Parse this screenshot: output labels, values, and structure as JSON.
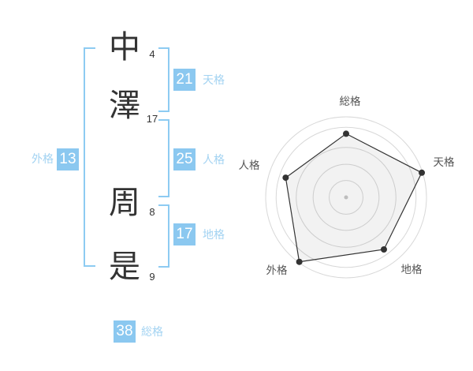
{
  "name_panel": {
    "characters": [
      {
        "char": "中",
        "strokes": "4"
      },
      {
        "char": "澤",
        "strokes": "17"
      },
      {
        "char": "周",
        "strokes": "8"
      },
      {
        "char": "是",
        "strokes": "9"
      }
    ],
    "kaku": {
      "tenkaku": {
        "value": "21",
        "label": "天格"
      },
      "jinkaku": {
        "value": "25",
        "label": "人格"
      },
      "chikaku": {
        "value": "17",
        "label": "地格"
      },
      "gaikaku": {
        "value": "13",
        "label": "外格"
      },
      "soukaku": {
        "value": "38",
        "label": "総格"
      }
    }
  },
  "colors": {
    "badge_blue": "#8bc8f0",
    "label_blue": "#a3d3f2",
    "bracket_blue": "#8dcbf2",
    "ink": "#333333",
    "radar_grid": "#d8d8d8",
    "radar_stroke": "#333333",
    "radar_fill": "rgba(0,0,0,0.05)",
    "radar_dot": "#333333",
    "radar_center_dot": "#bdbdbd",
    "radar_label": "#555555"
  },
  "chart_data": {
    "type": "radar",
    "title": "",
    "axes": [
      "総格",
      "天格",
      "地格",
      "外格",
      "人格"
    ],
    "values": [
      79,
      99,
      80,
      99,
      79
    ],
    "max": 100,
    "grid_rings": [
      21,
      41,
      62,
      87,
      100
    ],
    "legend": "none",
    "grid": "circular"
  }
}
